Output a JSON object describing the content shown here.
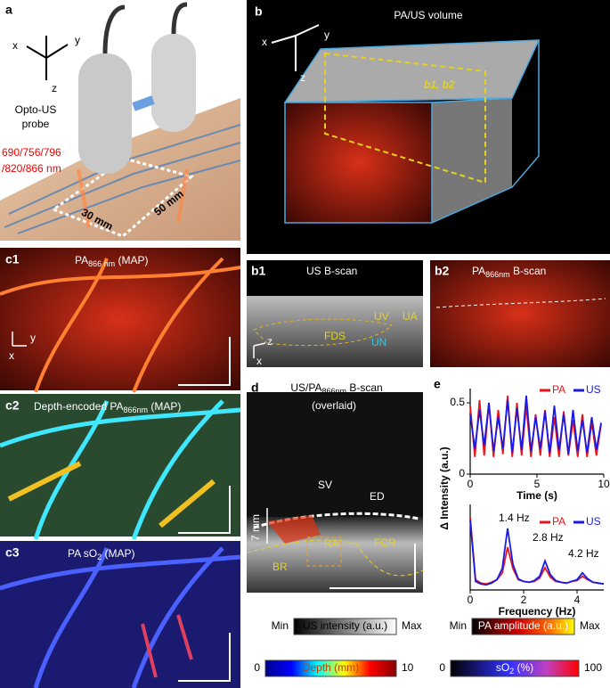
{
  "panels": {
    "a": {
      "label": "a",
      "axes": [
        "x",
        "y",
        "z"
      ],
      "probe": [
        "Opto-US",
        "probe"
      ],
      "wavelengths": [
        "690/756/796",
        "/820/866 nm"
      ],
      "dim1": "30 mm",
      "dim2": "50 mm"
    },
    "b": {
      "label": "b",
      "title": "PA/US volume",
      "axes": [
        "x",
        "y",
        "z"
      ],
      "plane": "b1, b2"
    },
    "b1": {
      "label": "b1",
      "title": "US B-scan",
      "structures": [
        "UV",
        "UA",
        "FDS",
        "UN"
      ],
      "axes": [
        "z",
        "x"
      ]
    },
    "b2": {
      "label": "b2",
      "title": {
        "main": "PA",
        "sub": "866nm",
        "rest": " B-scan"
      }
    },
    "c1": {
      "label": "c1",
      "title": {
        "main": "PA",
        "sub": "866 nm",
        "rest": " (MAP)"
      },
      "axes": [
        "y",
        "x"
      ]
    },
    "c2": {
      "label": "c2",
      "title": {
        "main": "Depth-encoded PA",
        "sub": "866nm",
        "rest": " (MAP)"
      }
    },
    "c3": {
      "label": "c3",
      "title": {
        "main": "PA sO",
        "sub": "2",
        "rest": " (MAP)"
      }
    },
    "d": {
      "label": "d",
      "title": {
        "main": "US/PA",
        "sub": "866nm",
        "rest": " B-scan"
      },
      "subtitle": "(overlaid)",
      "structures": [
        "SV",
        "ED",
        "RA",
        "FCR",
        "BR"
      ],
      "depth": "7 mm"
    },
    "e": {
      "label": "e"
    }
  },
  "colorbars": [
    {
      "min": "Min",
      "label": "US intensity (a.u.)",
      "max": "Max"
    },
    {
      "min": "Min",
      "label": "PA amplitude (a.u.)",
      "max": "Max"
    },
    {
      "min": 0,
      "label": "Depth (mm)",
      "max": 10
    },
    {
      "min": 0,
      "label": {
        "main": "sO",
        "sub": "2",
        "rest": " (%)"
      },
      "max": 100
    }
  ],
  "chart_data": [
    {
      "type": "line",
      "ylabel": "Δ Intensity (a.u.)",
      "xlabel": "Time (s)",
      "x": [
        0,
        0.35,
        0.7,
        1.05,
        1.4,
        1.75,
        2.1,
        2.45,
        2.8,
        3.15,
        3.5,
        3.85,
        4.2,
        4.55,
        4.9,
        5.25,
        5.6,
        5.95,
        6.3,
        6.65,
        7,
        7.35,
        7.7,
        8.05,
        8.4,
        8.75,
        9.1,
        9.45,
        9.8
      ],
      "series": [
        {
          "name": "PA",
          "color": "#e8141c",
          "values": [
            0.48,
            0.12,
            0.52,
            0.13,
            0.5,
            0.12,
            0.45,
            0.14,
            0.55,
            0.12,
            0.5,
            0.13,
            0.48,
            0.12,
            0.42,
            0.13,
            0.45,
            0.12,
            0.4,
            0.12,
            0.44,
            0.13,
            0.38,
            0.12,
            0.42,
            0.12,
            0.36,
            0.13,
            0.35
          ]
        },
        {
          "name": "US",
          "color": "#1a1ae6",
          "values": [
            0.42,
            0.18,
            0.45,
            0.2,
            0.5,
            0.16,
            0.4,
            0.18,
            0.52,
            0.15,
            0.46,
            0.17,
            0.55,
            0.16,
            0.4,
            0.18,
            0.44,
            0.15,
            0.48,
            0.17,
            0.42,
            0.14,
            0.45,
            0.16,
            0.38,
            0.15,
            0.4,
            0.17,
            0.36
          ]
        }
      ],
      "xlim": [
        0,
        10
      ],
      "xticks": [
        0,
        5,
        10
      ],
      "ylim": [
        0,
        0.6
      ],
      "yticks": [
        0,
        0.5
      ]
    },
    {
      "type": "line",
      "xlabel": "Frequency (Hz)",
      "annotations": [
        "1.4 Hz",
        "2.8 Hz",
        "4.2 Hz"
      ],
      "x": [
        0,
        0.2,
        0.4,
        0.6,
        0.8,
        1,
        1.2,
        1.4,
        1.6,
        1.8,
        2,
        2.2,
        2.4,
        2.6,
        2.8,
        3,
        3.2,
        3.4,
        3.6,
        3.8,
        4,
        4.2,
        4.4,
        4.6,
        4.8,
        5
      ],
      "series": [
        {
          "name": "PA",
          "color": "#e8141c",
          "values": [
            0.85,
            0.12,
            0.08,
            0.07,
            0.09,
            0.12,
            0.2,
            0.5,
            0.25,
            0.12,
            0.1,
            0.09,
            0.1,
            0.14,
            0.26,
            0.15,
            0.1,
            0.09,
            0.08,
            0.1,
            0.11,
            0.16,
            0.12,
            0.09,
            0.08,
            0.07
          ]
        },
        {
          "name": "US",
          "color": "#1a1ae6",
          "values": [
            0.82,
            0.1,
            0.07,
            0.06,
            0.08,
            0.12,
            0.25,
            0.72,
            0.3,
            0.13,
            0.1,
            0.09,
            0.11,
            0.16,
            0.34,
            0.18,
            0.11,
            0.09,
            0.08,
            0.1,
            0.12,
            0.2,
            0.13,
            0.09,
            0.08,
            0.07
          ]
        }
      ],
      "xlim": [
        0,
        5
      ],
      "xticks": [
        0,
        2,
        4
      ],
      "ylim": [
        0,
        1
      ],
      "yticks": []
    }
  ]
}
